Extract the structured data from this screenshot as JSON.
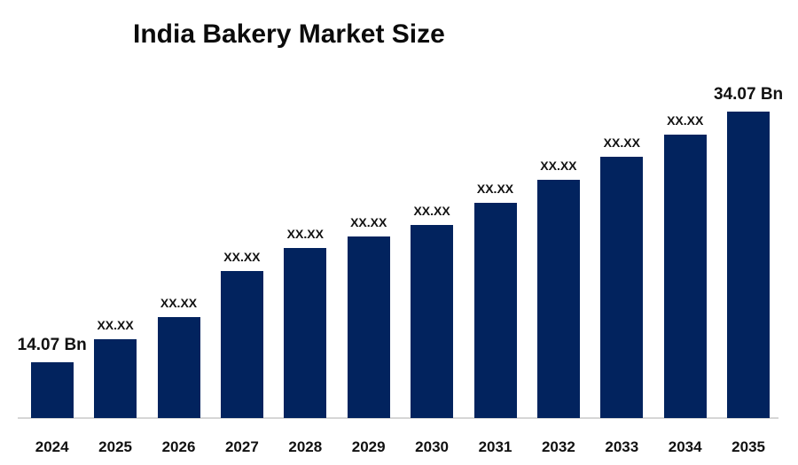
{
  "title": "India Bakery Market Size",
  "chart_data": {
    "type": "bar",
    "title": "India Bakery Market Size",
    "categories": [
      "2024",
      "2025",
      "2026",
      "2027",
      "2028",
      "2029",
      "2030",
      "2031",
      "2032",
      "2033",
      "2034",
      "2035"
    ],
    "values": [
      14.07,
      15.91,
      17.67,
      21.35,
      23.19,
      24.11,
      25.03,
      26.79,
      28.63,
      30.47,
      32.24,
      34.07
    ],
    "bar_labels": [
      "14.07 Bn",
      "XX.XX",
      "XX.XX",
      "XX.XX",
      "XX.XX",
      "XX.XX",
      "XX.XX",
      "XX.XX",
      "XX.XX",
      "XX.XX",
      "XX.XX",
      "34.07 Bn"
    ],
    "xlabel": "",
    "ylabel": "",
    "ylim": [
      9.6,
      34.5
    ],
    "grid": false,
    "legend": false,
    "colors": {
      "bar": "#02235E",
      "axis_line": "#D6D6D6",
      "value_label": "#111111",
      "title": "#0B0B0B"
    }
  }
}
